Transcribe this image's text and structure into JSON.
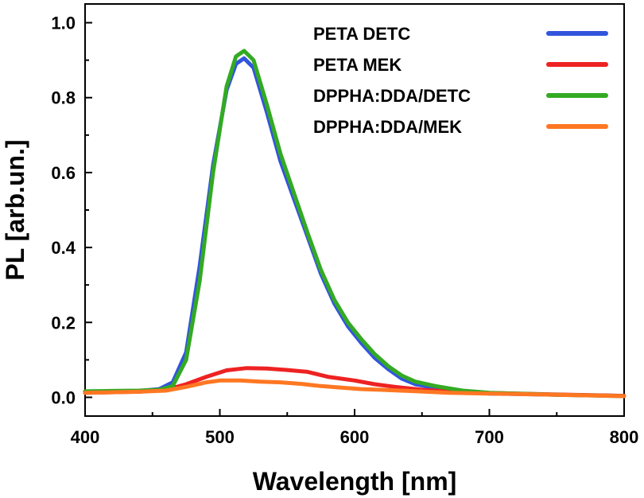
{
  "chart_data": {
    "type": "line",
    "xlabel": "Wavelength [nm]",
    "ylabel": "PL [arb.un.]",
    "xlim": [
      400,
      800
    ],
    "ylim": [
      -0.05,
      1.05
    ],
    "x_ticks": [
      400,
      500,
      600,
      700,
      800
    ],
    "x_tick_labels": [
      "400",
      "500",
      "600",
      "700",
      "800"
    ],
    "y_ticks": [
      0.0,
      0.2,
      0.4,
      0.6,
      0.8,
      1.0
    ],
    "y_tick_labels": [
      "0.0",
      "0.2",
      "0.4",
      "0.6",
      "0.8",
      "1.0"
    ],
    "grid": false,
    "legend_position": "top-right",
    "series": [
      {
        "name": "PETA DETC",
        "color": "#3355dd",
        "points": [
          [
            400,
            0.015
          ],
          [
            420,
            0.015
          ],
          [
            440,
            0.017
          ],
          [
            455,
            0.022
          ],
          [
            465,
            0.04
          ],
          [
            475,
            0.12
          ],
          [
            485,
            0.35
          ],
          [
            495,
            0.62
          ],
          [
            505,
            0.82
          ],
          [
            512,
            0.89
          ],
          [
            518,
            0.905
          ],
          [
            525,
            0.88
          ],
          [
            535,
            0.76
          ],
          [
            545,
            0.63
          ],
          [
            555,
            0.53
          ],
          [
            565,
            0.43
          ],
          [
            575,
            0.33
          ],
          [
            585,
            0.25
          ],
          [
            595,
            0.19
          ],
          [
            605,
            0.145
          ],
          [
            615,
            0.105
          ],
          [
            625,
            0.075
          ],
          [
            635,
            0.05
          ],
          [
            645,
            0.035
          ],
          [
            660,
            0.025
          ],
          [
            680,
            0.015
          ],
          [
            700,
            0.01
          ],
          [
            750,
            0.007
          ],
          [
            800,
            0.004
          ]
        ]
      },
      {
        "name": "PETA MEK",
        "color": "#ee2222",
        "points": [
          [
            400,
            0.012
          ],
          [
            440,
            0.015
          ],
          [
            460,
            0.02
          ],
          [
            475,
            0.035
          ],
          [
            490,
            0.055
          ],
          [
            505,
            0.072
          ],
          [
            520,
            0.078
          ],
          [
            535,
            0.077
          ],
          [
            550,
            0.073
          ],
          [
            565,
            0.068
          ],
          [
            580,
            0.055
          ],
          [
            600,
            0.045
          ],
          [
            615,
            0.035
          ],
          [
            630,
            0.028
          ],
          [
            650,
            0.02
          ],
          [
            680,
            0.013
          ],
          [
            720,
            0.01
          ],
          [
            760,
            0.007
          ],
          [
            800,
            0.004
          ]
        ]
      },
      {
        "name": "DPPHA:DDA/DETC",
        "color": "#33aa22",
        "points": [
          [
            400,
            0.016
          ],
          [
            420,
            0.017
          ],
          [
            440,
            0.018
          ],
          [
            455,
            0.02
          ],
          [
            465,
            0.03
          ],
          [
            475,
            0.1
          ],
          [
            485,
            0.31
          ],
          [
            495,
            0.6
          ],
          [
            505,
            0.83
          ],
          [
            512,
            0.91
          ],
          [
            518,
            0.925
          ],
          [
            525,
            0.9
          ],
          [
            535,
            0.78
          ],
          [
            545,
            0.65
          ],
          [
            555,
            0.545
          ],
          [
            565,
            0.44
          ],
          [
            575,
            0.34
          ],
          [
            585,
            0.26
          ],
          [
            595,
            0.2
          ],
          [
            605,
            0.155
          ],
          [
            615,
            0.115
          ],
          [
            625,
            0.083
          ],
          [
            635,
            0.058
          ],
          [
            645,
            0.042
          ],
          [
            660,
            0.03
          ],
          [
            680,
            0.018
          ],
          [
            700,
            0.012
          ],
          [
            750,
            0.007
          ],
          [
            800,
            0.003
          ]
        ]
      },
      {
        "name": "DPPHA:DDA/MEK",
        "color": "#ff7722",
        "points": [
          [
            400,
            0.012
          ],
          [
            440,
            0.015
          ],
          [
            460,
            0.018
          ],
          [
            475,
            0.028
          ],
          [
            490,
            0.04
          ],
          [
            500,
            0.045
          ],
          [
            515,
            0.045
          ],
          [
            530,
            0.042
          ],
          [
            545,
            0.04
          ],
          [
            560,
            0.036
          ],
          [
            575,
            0.03
          ],
          [
            590,
            0.026
          ],
          [
            605,
            0.022
          ],
          [
            620,
            0.02
          ],
          [
            640,
            0.017
          ],
          [
            670,
            0.012
          ],
          [
            700,
            0.01
          ],
          [
            750,
            0.007
          ],
          [
            800,
            0.003
          ]
        ]
      }
    ]
  }
}
